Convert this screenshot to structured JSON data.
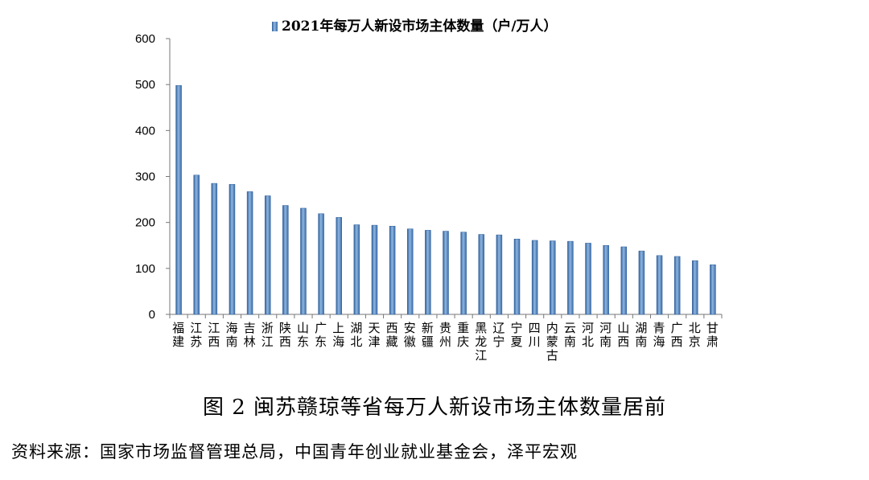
{
  "chart_data": {
    "type": "bar",
    "legend": "2021年每万人新设市场主体数量（户/万人）",
    "legend_position": "top",
    "categories": [
      "福建",
      "江苏",
      "江西",
      "海南",
      "吉林",
      "浙江",
      "陕西",
      "山东",
      "广东",
      "上海",
      "湖北",
      "天津",
      "西藏",
      "安徽",
      "新疆",
      "贵州",
      "重庆",
      "黑龙江",
      "辽宁",
      "宁夏",
      "四川",
      "内蒙古",
      "云南",
      "河北",
      "河南",
      "山西",
      "湖南",
      "青海",
      "广西",
      "北京",
      "甘肃"
    ],
    "values": [
      498,
      303,
      285,
      283,
      267,
      258,
      237,
      231,
      219,
      211,
      195,
      194,
      192,
      186,
      183,
      181,
      179,
      174,
      173,
      164,
      161,
      160,
      159,
      155,
      150,
      147,
      138,
      128,
      126,
      117,
      108
    ],
    "ylim": [
      0,
      600
    ],
    "yticks": [
      0,
      100,
      200,
      300,
      400,
      500,
      600
    ],
    "grid": false,
    "bar_color": "#5b8ec9"
  },
  "caption": "图 2  闽苏赣琼等省每万人新设市场主体数量居前",
  "source": "资料来源：国家市场监督管理总局，中国青年创业就业基金会，泽平宏观"
}
